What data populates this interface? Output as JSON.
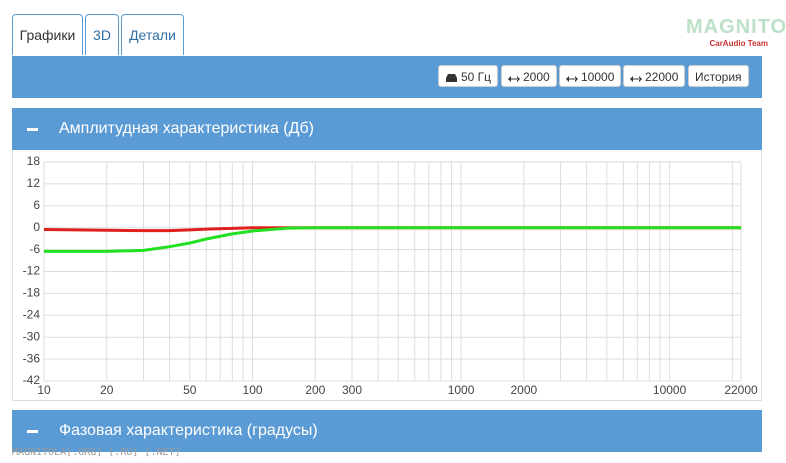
{
  "tabs": [
    "Графики",
    "3D",
    "Детали"
  ],
  "logo": {
    "title": "MAGNITOLA",
    "subtitle": "CarAudio Team"
  },
  "toolbar": {
    "buttons": [
      "50 Гц",
      "2000",
      "10000",
      "22000",
      "История"
    ]
  },
  "panels": [
    "Амплитудная характеристика (Дб)",
    "Фазовая характеристика (градусы)"
  ],
  "watermark": "MAGNITOLA[.ORG] [.RU] [.NET]",
  "chart_data": {
    "type": "line",
    "x": [
      10,
      20,
      30,
      40,
      50,
      60,
      80,
      100,
      150,
      200,
      1000,
      22000
    ],
    "series": [
      {
        "name": "red",
        "color": "#e0201c",
        "values": [
          -0.5,
          -0.7,
          -0.8,
          -0.8,
          -0.6,
          -0.4,
          -0.2,
          0,
          0,
          0,
          0,
          0
        ]
      },
      {
        "name": "green",
        "color": "#22e022",
        "values": [
          -6.5,
          -6.5,
          -6.2,
          -5.2,
          -4.2,
          -3.1,
          -1.7,
          -0.9,
          -0.1,
          0,
          0,
          0
        ]
      }
    ],
    "xlog": true,
    "xlim": [
      10,
      22000
    ],
    "xticks": [
      10,
      20,
      50,
      100,
      200,
      300,
      1000,
      2000,
      10000,
      22000
    ],
    "xgrid": [
      10,
      20,
      30,
      40,
      50,
      60,
      70,
      80,
      90,
      100,
      200,
      300,
      400,
      500,
      600,
      700,
      800,
      900,
      1000,
      2000,
      3000,
      4000,
      5000,
      6000,
      7000,
      8000,
      9000,
      10000,
      20000,
      22000
    ],
    "ylim": [
      -42,
      18
    ],
    "yticks": [
      18,
      12,
      6,
      0,
      -6,
      -12,
      -18,
      -24,
      -30,
      -36,
      -42
    ],
    "grid": true
  }
}
